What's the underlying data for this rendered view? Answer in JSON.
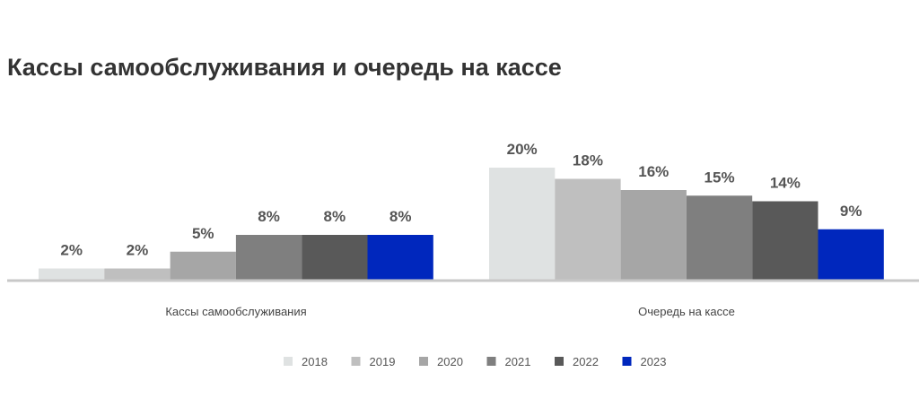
{
  "chart_data": {
    "type": "bar",
    "title": "Кассы самообслуживания и очередь на кассе",
    "categories": [
      "Кассы самообслуживания",
      "Очередь на кассе"
    ],
    "series": [
      {
        "name": "2018",
        "color": "#dfe2e2",
        "values": [
          2,
          20
        ]
      },
      {
        "name": "2019",
        "color": "#bfbfbf",
        "values": [
          2,
          18
        ]
      },
      {
        "name": "2020",
        "color": "#a6a6a6",
        "values": [
          5,
          16
        ]
      },
      {
        "name": "2021",
        "color": "#7f7f7f",
        "values": [
          8,
          15
        ]
      },
      {
        "name": "2022",
        "color": "#595959",
        "values": [
          8,
          14
        ]
      },
      {
        "name": "2023",
        "color": "#0027bd",
        "values": [
          8,
          9
        ]
      }
    ],
    "value_format": "percent",
    "ylim": [
      0,
      20
    ],
    "grid": false,
    "legend_position": "bottom"
  }
}
